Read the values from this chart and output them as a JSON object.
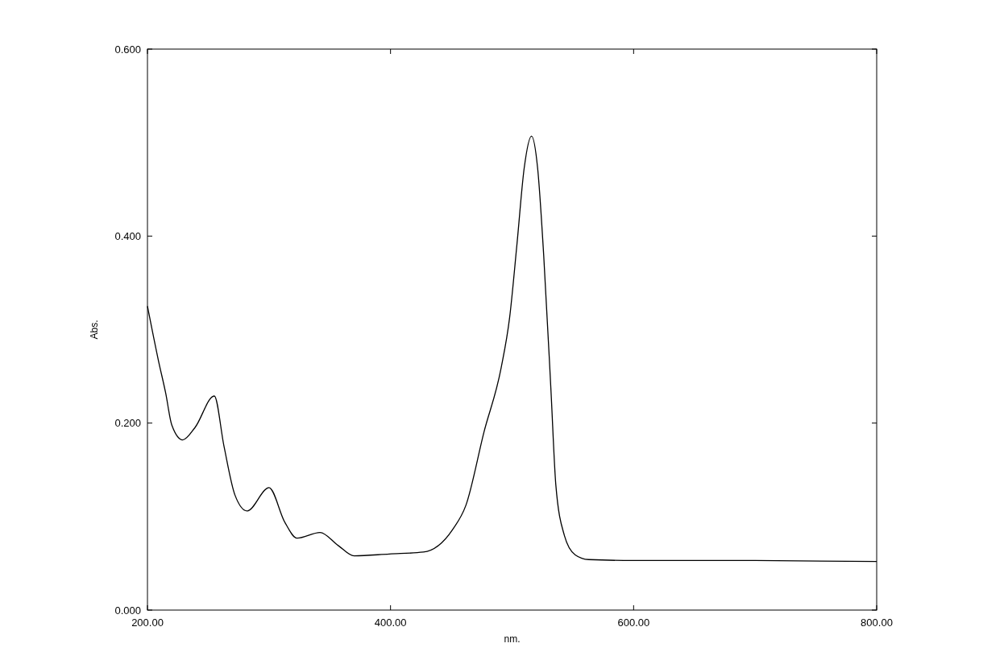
{
  "chart_data": {
    "type": "line",
    "xlabel": "nm.",
    "ylabel": "Abs.",
    "xlim": [
      200,
      800
    ],
    "ylim": [
      0,
      0.6
    ],
    "xticks": [
      {
        "value": 200,
        "label": "200.00"
      },
      {
        "value": 400,
        "label": "400.00"
      },
      {
        "value": 600,
        "label": "600.00"
      },
      {
        "value": 800,
        "label": "800.00"
      }
    ],
    "yticks": [
      {
        "value": 0,
        "label": "0.000"
      },
      {
        "value": 0.2,
        "label": "0.200"
      },
      {
        "value": 0.4,
        "label": "0.400"
      },
      {
        "value": 0.6,
        "label": "0.600"
      }
    ],
    "grid": false,
    "series": [
      {
        "color": "#000000",
        "x": [
          200,
          209,
          215,
          220,
          229,
          239,
          255,
          263,
          272,
          282,
          300,
          313,
          323,
          342,
          357,
          370,
          399,
          427,
          451,
          462,
          477,
          491,
          498,
          504,
          510,
          516,
          521,
          526,
          532,
          536,
          543,
          552,
          563,
          600,
          700,
          800
        ],
        "values": [
          0.325,
          0.267,
          0.232,
          0.198,
          0.182,
          0.195,
          0.229,
          0.175,
          0.123,
          0.106,
          0.131,
          0.094,
          0.077,
          0.083,
          0.069,
          0.058,
          0.06,
          0.062,
          0.086,
          0.112,
          0.191,
          0.259,
          0.313,
          0.391,
          0.473,
          0.507,
          0.473,
          0.38,
          0.235,
          0.134,
          0.08,
          0.059,
          0.054,
          0.053,
          0.053,
          0.052
        ]
      }
    ]
  }
}
